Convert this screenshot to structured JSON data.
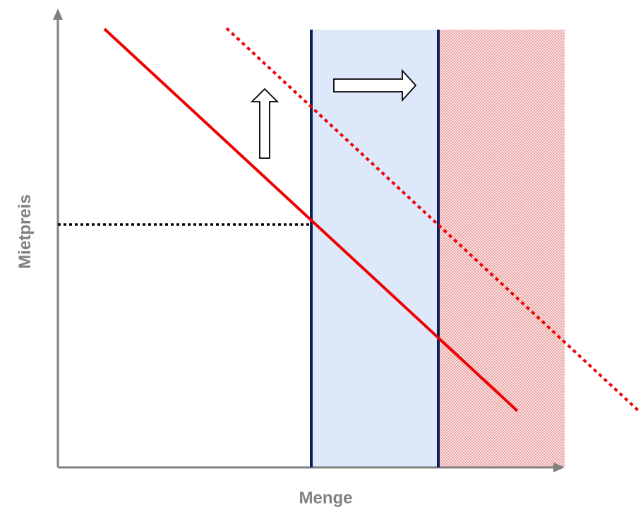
{
  "axes": {
    "x_label": "Menge",
    "y_label": "Mietpreis"
  },
  "colors": {
    "axis": "#808080",
    "demand_line": "#ee0000",
    "supply_line": "#0a1f5c",
    "expansion_band": "#dde8fb",
    "shaded_region": "#f4c6c6",
    "reference_line": "#000000"
  },
  "shapes": {
    "demand_original": "solid-line",
    "demand_shifted": "dotted-line",
    "supply_original": "vertical-line",
    "supply_expanded": "vertical-line",
    "equilibrium_price": "horizontal-dotted-line",
    "price_increase_arrow": "up-arrow",
    "quantity_increase_arrow": "right-arrow"
  }
}
